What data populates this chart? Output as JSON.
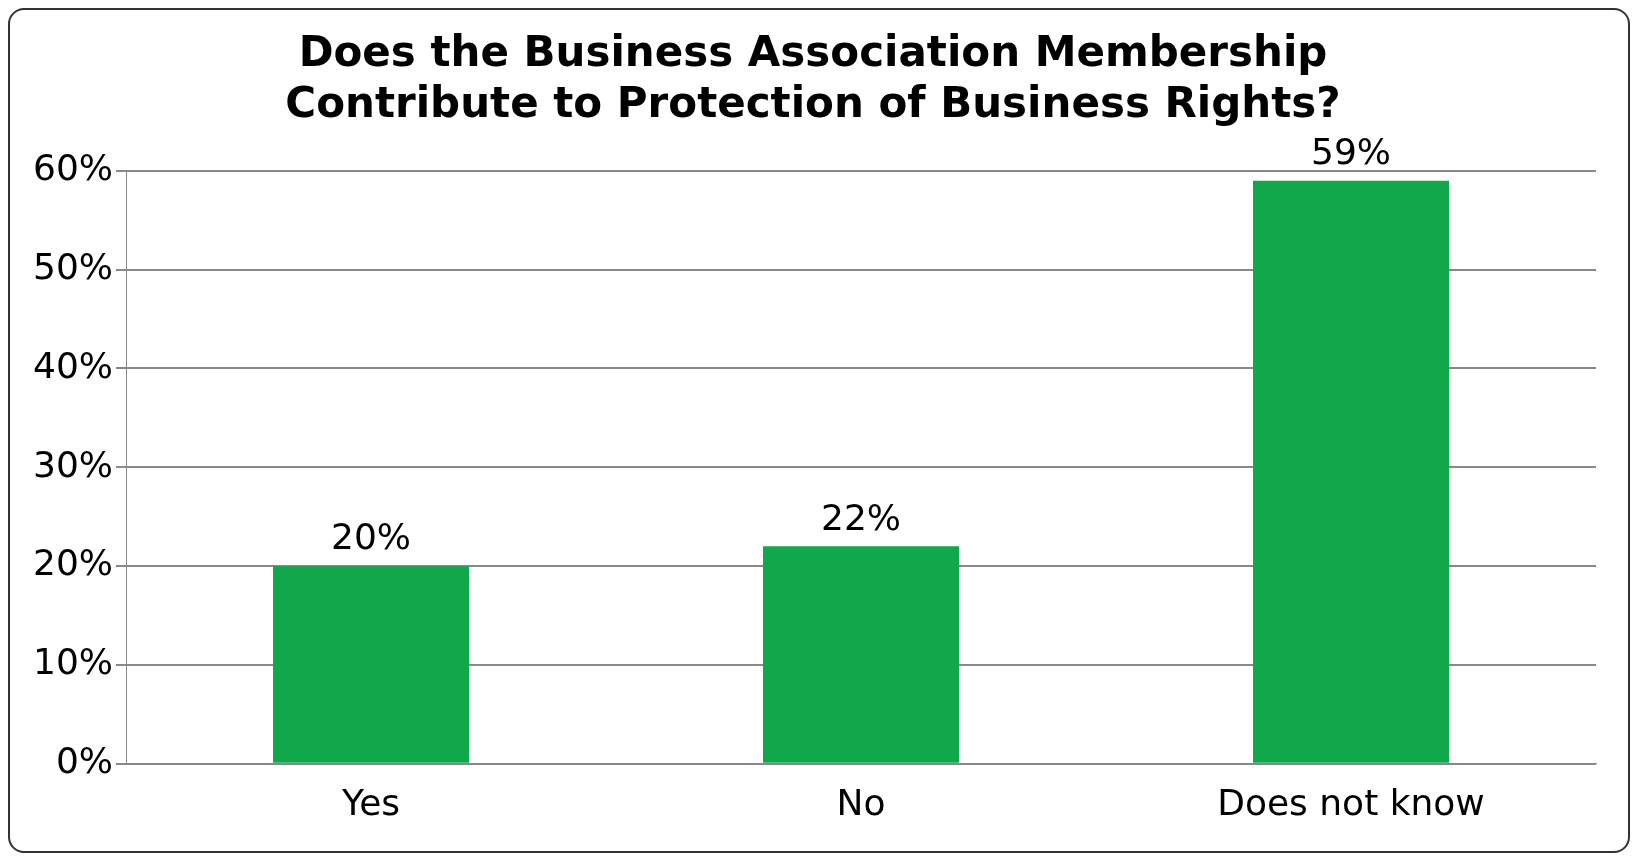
{
  "chart_data": {
    "type": "bar",
    "title": "Does the Business Association Membership\nContribute to Protection of Business Rights?",
    "categories": [
      "Yes",
      "No",
      "Does not know"
    ],
    "values": [
      20,
      22,
      59
    ],
    "value_labels": [
      "20%",
      "22%",
      "59%"
    ],
    "color": "#10a84a",
    "ylim": [
      0,
      60
    ],
    "yticks": [
      {
        "value": 0,
        "label": "0%"
      },
      {
        "value": 10,
        "label": "10%"
      },
      {
        "value": 20,
        "label": "20%"
      },
      {
        "value": 30,
        "label": "30%"
      },
      {
        "value": 40,
        "label": "40%"
      },
      {
        "value": 50,
        "label": "50%"
      },
      {
        "value": 60,
        "label": "60%"
      }
    ],
    "grid": "y",
    "legend": false
  }
}
